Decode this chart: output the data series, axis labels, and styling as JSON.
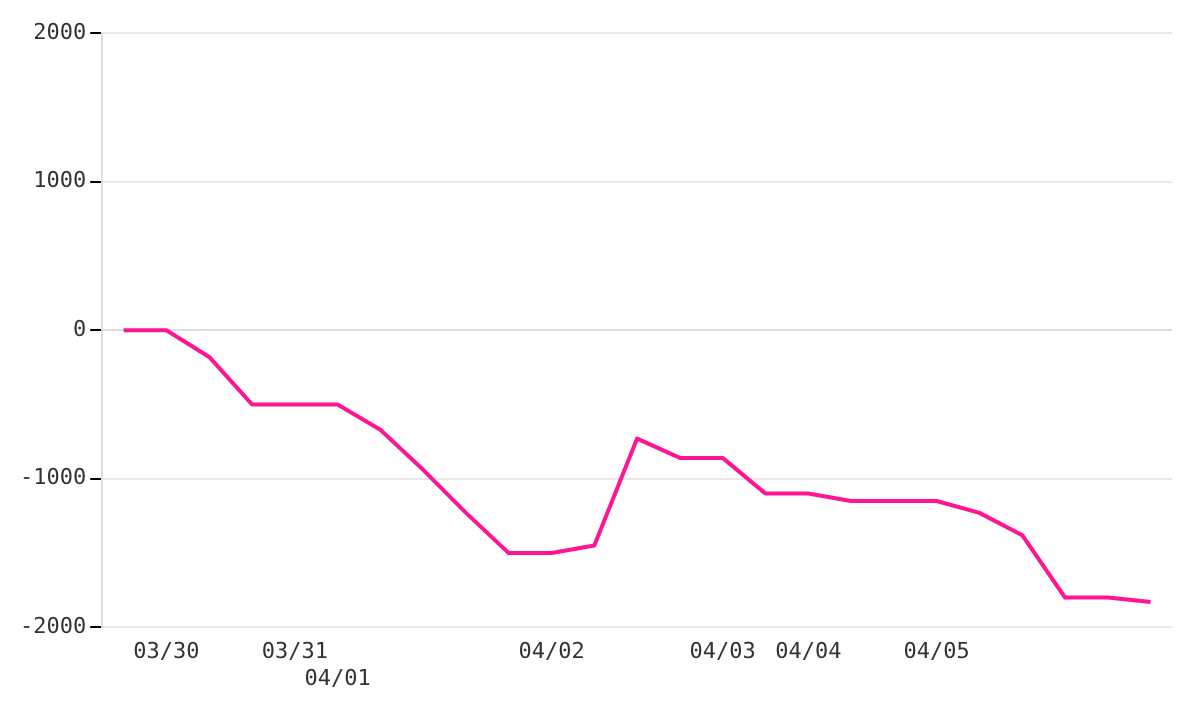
{
  "chart_data": {
    "type": "line",
    "categories": [
      null,
      "03/30",
      null,
      null,
      "03/31",
      "04/01",
      null,
      null,
      null,
      null,
      "04/02",
      null,
      null,
      null,
      "04/03",
      null,
      "04/04",
      null,
      null,
      "04/05",
      null,
      null,
      null,
      null,
      null
    ],
    "series": [
      {
        "color": "#ff1493",
        "values": [
          0,
          0,
          -180,
          -500,
          -500,
          -500,
          -670,
          -940,
          -1230,
          -1500,
          -1500,
          -1450,
          -730,
          -860,
          -860,
          -1100,
          -1100,
          -1150,
          -1150,
          -1150,
          -1230,
          -1380,
          -1800,
          -1800,
          -1830
        ]
      }
    ],
    "ylim": [
      -2000,
      2000
    ],
    "yticks": [
      -2000,
      -1000,
      0,
      1000,
      2000
    ],
    "grid": "y",
    "legend": false,
    "marker": "none",
    "line_style": "solid"
  }
}
